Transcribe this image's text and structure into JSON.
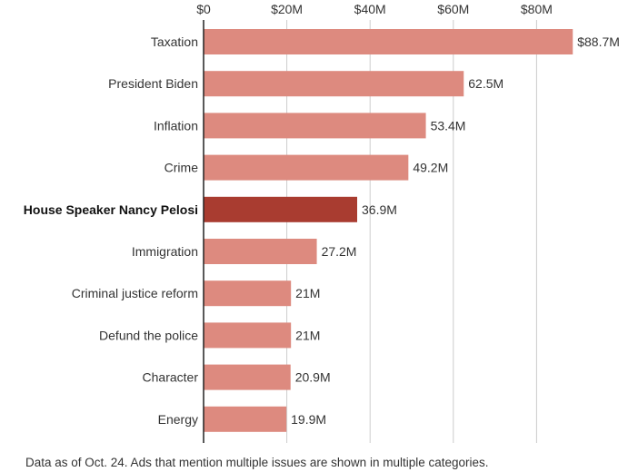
{
  "chart_data": {
    "type": "bar",
    "orientation": "horizontal",
    "categories": [
      "Taxation",
      "President Biden",
      "Inflation",
      "Crime",
      "House Speaker Nancy Pelosi",
      "Immigration",
      "Criminal justice reform",
      "Defund the police",
      "Character",
      "Energy"
    ],
    "values": [
      88.7,
      62.5,
      53.4,
      49.2,
      36.9,
      27.2,
      21,
      21,
      20.9,
      19.9
    ],
    "value_labels": [
      "$88.7M",
      "62.5M",
      "53.4M",
      "49.2M",
      "36.9M",
      "27.2M",
      "21M",
      "21M",
      "20.9M",
      "19.9M"
    ],
    "highlight": "House Speaker Nancy Pelosi",
    "xticks": [
      0,
      20,
      40,
      60,
      80
    ],
    "xtick_labels": [
      "$0",
      "$20M",
      "$40M",
      "$60M",
      "$80M"
    ],
    "xlim": [
      0,
      90
    ],
    "title": "",
    "xlabel": "",
    "ylabel": "",
    "grid": true,
    "colors": {
      "bar": "#dd8a7f",
      "highlight": "#a93c30",
      "grid": "#cccccc",
      "axis": "#222222"
    }
  },
  "note": "Data as of Oct. 24. Ads that mention multiple issues are shown in multiple categories."
}
